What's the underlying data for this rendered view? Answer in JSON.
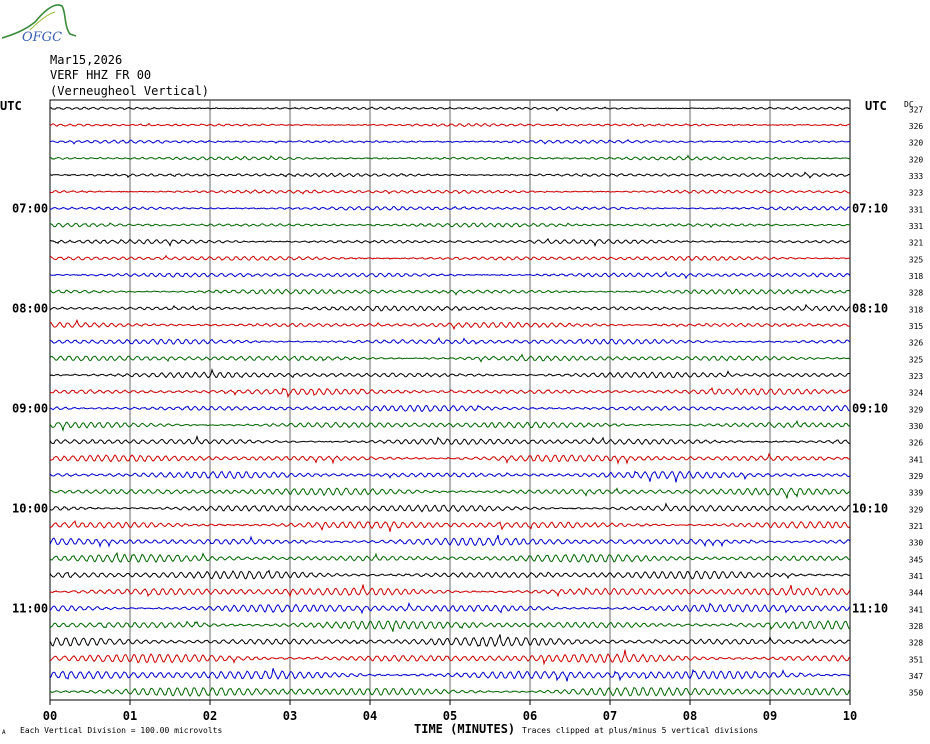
{
  "logo": {
    "text": "OFGC"
  },
  "header": {
    "date": "Mar15,2026",
    "station": "VERF HHZ FR 00",
    "location": "(Verneugheol Vertical)"
  },
  "left_tz": "UTC",
  "right_tz": "UTC",
  "dc_label": "DC",
  "footer": {
    "scale_note": "Each Vertical Division =  100.00 microvolts",
    "xaxis_title": "TIME (MINUTES)",
    "clip_note": "Traces clipped at plus/minus 5 vertical divisions",
    "small_mark": "A"
  },
  "colors": {
    "cycle": [
      "#000000",
      "#cc0000",
      "#0000cc",
      "#006600"
    ],
    "grid": "#000000"
  },
  "chart_data": {
    "type": "line",
    "title": "",
    "xlabel": "TIME (MINUTES)",
    "ylabel": "",
    "xlim": [
      0,
      10
    ],
    "x_ticks": [
      "00",
      "01",
      "02",
      "03",
      "04",
      "05",
      "06",
      "07",
      "08",
      "09",
      "10"
    ],
    "trace_count": 36,
    "left_time_labels": [
      {
        "row": 6,
        "label": "07:00"
      },
      {
        "row": 12,
        "label": "08:00"
      },
      {
        "row": 18,
        "label": "09:00"
      },
      {
        "row": 24,
        "label": "10:00"
      },
      {
        "row": 30,
        "label": "11:00"
      }
    ],
    "right_time_labels": [
      {
        "row": 6,
        "label": "07:10"
      },
      {
        "row": 12,
        "label": "08:10"
      },
      {
        "row": 18,
        "label": "09:10"
      },
      {
        "row": 24,
        "label": "10:10"
      },
      {
        "row": 30,
        "label": "11:10"
      }
    ],
    "dc_values": [
      327,
      326,
      320,
      320,
      333,
      323,
      331,
      331,
      321,
      325,
      318,
      328,
      318,
      315,
      326,
      325,
      323,
      324,
      329,
      330,
      326,
      341,
      329,
      339,
      329,
      321,
      330,
      345,
      341,
      344,
      341,
      328,
      328,
      351,
      347,
      350
    ]
  }
}
